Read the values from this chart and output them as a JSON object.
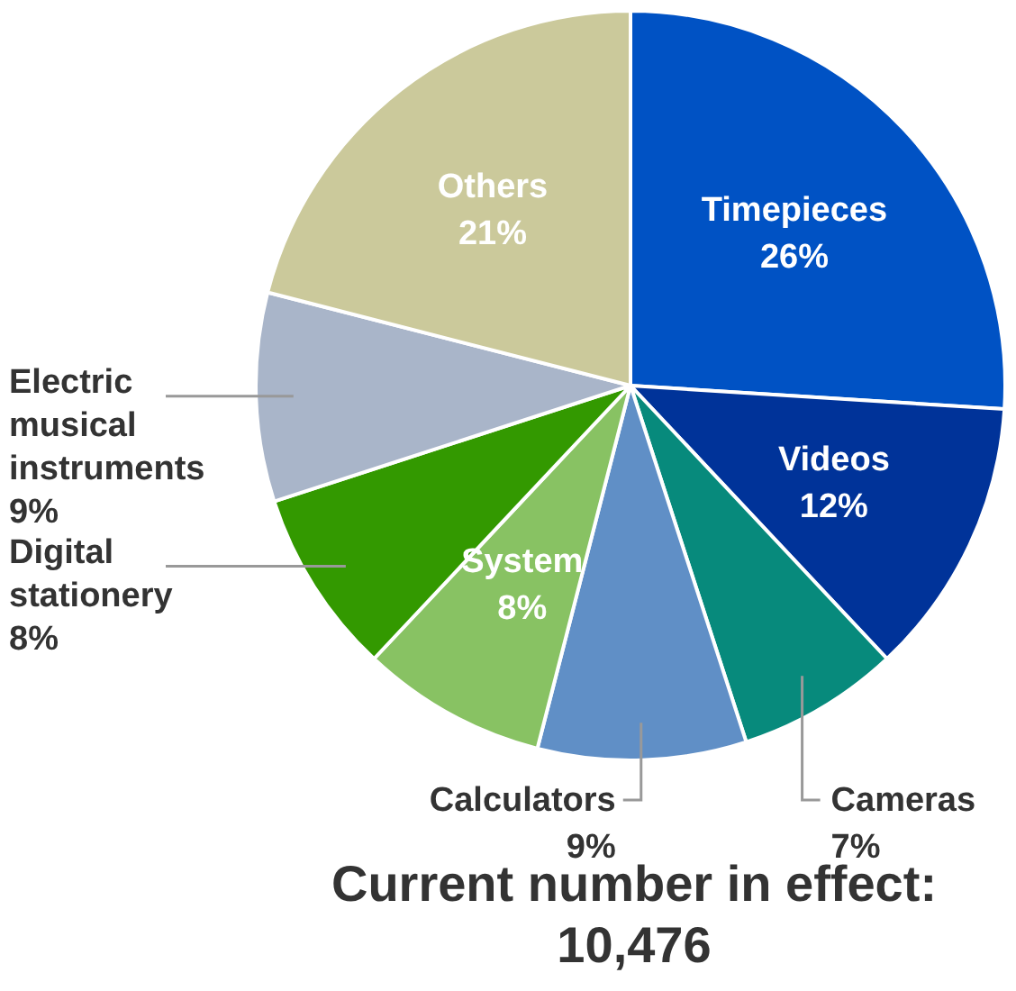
{
  "chart_data": {
    "type": "pie",
    "title": "Current number in effect: 10,476",
    "categories": [
      "Timepieces",
      "Videos",
      "Cameras",
      "Calculators",
      "System",
      "Digital stationery",
      "Electric musical instruments",
      "Others"
    ],
    "values": [
      26,
      12,
      7,
      9,
      8,
      8,
      9,
      21
    ],
    "value_labels": [
      "26%",
      "12%",
      "7%",
      "9%",
      "8%",
      "8%",
      "9%",
      "21%"
    ],
    "colors": [
      "#0052c4",
      "#003399",
      "#078a7c",
      "#608fc6",
      "#88c263",
      "#339900",
      "#a9b5c9",
      "#cbc99b"
    ]
  }
}
